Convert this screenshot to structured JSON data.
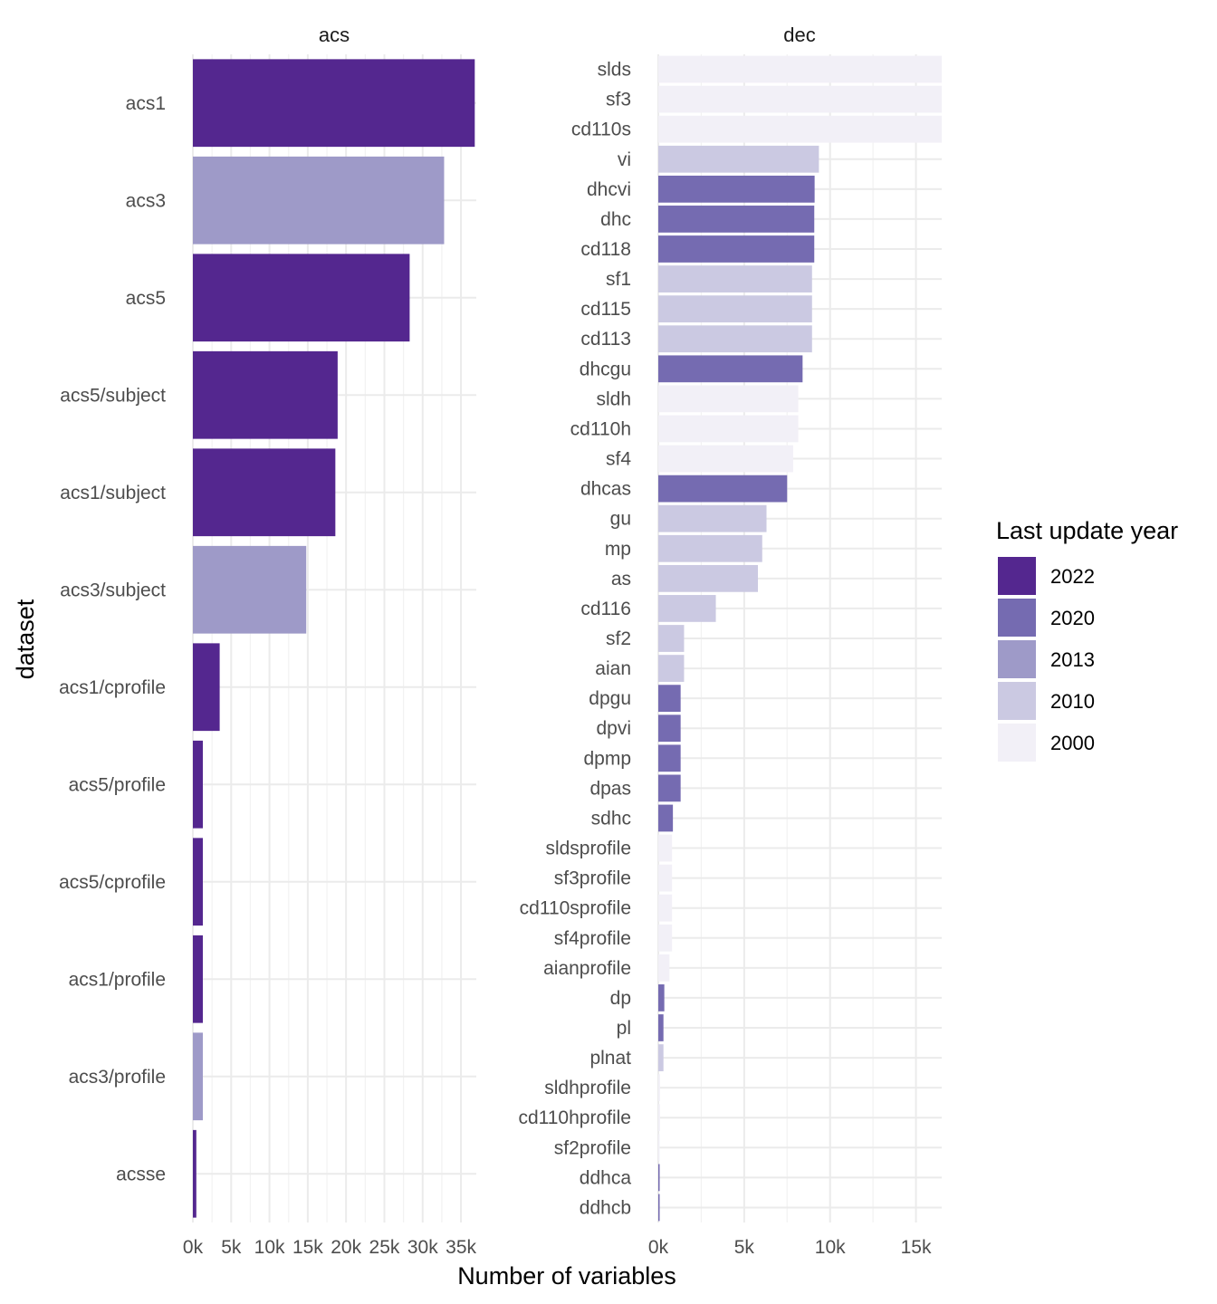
{
  "chart_data": {
    "type": "bar",
    "orientation": "horizontal",
    "xlabel": "Number of variables",
    "ylabel": "dataset",
    "legend": {
      "title": "Last update year",
      "position": "right",
      "entries": [
        {
          "label": "2022",
          "color": "#54278f"
        },
        {
          "label": "2020",
          "color": "#756bb1"
        },
        {
          "label": "2013",
          "color": "#9e9ac8"
        },
        {
          "label": "2010",
          "color": "#cbc9e2"
        },
        {
          "label": "2000",
          "color": "#f2f0f7"
        }
      ]
    },
    "grid": true,
    "panels": [
      {
        "name": "acs",
        "xlim": [
          0,
          37000
        ],
        "xticks": [
          0,
          5000,
          10000,
          15000,
          20000,
          25000,
          30000,
          35000
        ],
        "xtick_labels": [
          "0k",
          "5k",
          "10k",
          "15k",
          "20k",
          "25k",
          "30k",
          "35k"
        ],
        "categories": [
          "acs1",
          "acs3",
          "acs5",
          "acs5/subject",
          "acs1/subject",
          "acs3/subject",
          "acs1/cprofile",
          "acs5/profile",
          "acs5/cprofile",
          "acs1/profile",
          "acs3/profile",
          "acsse"
        ],
        "values": [
          36800,
          32800,
          28300,
          18900,
          18600,
          14800,
          3500,
          1300,
          1300,
          1300,
          1300,
          450
        ],
        "years": [
          "2022",
          "2013",
          "2022",
          "2022",
          "2022",
          "2013",
          "2022",
          "2022",
          "2022",
          "2022",
          "2013",
          "2022"
        ]
      },
      {
        "name": "dec",
        "xlim": [
          0,
          16500
        ],
        "xticks": [
          0,
          5000,
          10000,
          15000
        ],
        "xtick_labels": [
          "0k",
          "5k",
          "10k",
          "15k"
        ],
        "categories": [
          "slds",
          "sf3",
          "cd110s",
          "vi",
          "dhcvi",
          "dhc",
          "cd118",
          "sf1",
          "cd115",
          "cd113",
          "dhcgu",
          "sldh",
          "cd110h",
          "sf4",
          "dhcas",
          "gu",
          "mp",
          "as",
          "cd116",
          "sf2",
          "aian",
          "dpgu",
          "dpvi",
          "dpmp",
          "dpas",
          "sdhc",
          "sldsprofile",
          "sf3profile",
          "cd110sprofile",
          "sf4profile",
          "aianprofile",
          "dp",
          "pl",
          "plnat",
          "sldhprofile",
          "cd110hprofile",
          "sf2profile",
          "ddhca",
          "ddhcb"
        ],
        "values": [
          16500,
          16500,
          16500,
          9350,
          9100,
          9080,
          9080,
          8950,
          8950,
          8950,
          8400,
          8150,
          8150,
          7850,
          7500,
          6300,
          6050,
          5800,
          3350,
          1500,
          1500,
          1300,
          1300,
          1300,
          1300,
          850,
          800,
          800,
          800,
          800,
          650,
          350,
          300,
          300,
          100,
          100,
          80,
          60,
          20
        ],
        "years": [
          "2000",
          "2000",
          "2000",
          "2010",
          "2020",
          "2020",
          "2020",
          "2010",
          "2010",
          "2010",
          "2020",
          "2000",
          "2000",
          "2000",
          "2020",
          "2010",
          "2010",
          "2010",
          "2010",
          "2010",
          "2010",
          "2020",
          "2020",
          "2020",
          "2020",
          "2020",
          "2000",
          "2000",
          "2000",
          "2000",
          "2000",
          "2020",
          "2020",
          "2010",
          "2000",
          "2000",
          "2000",
          "2020",
          "2020"
        ]
      }
    ]
  }
}
